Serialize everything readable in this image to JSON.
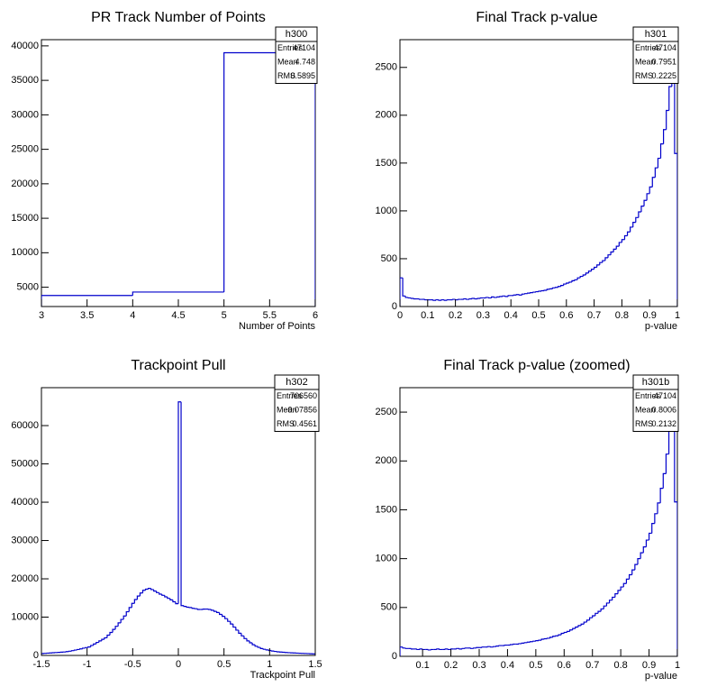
{
  "chart_data": [
    {
      "type": "histogram",
      "title": "PR Track Number of Points",
      "xlabel": "Number of Points",
      "color": "#0000cc",
      "bins": [
        3,
        4,
        5,
        6
      ],
      "values": [
        3800,
        4300,
        39000
      ],
      "xlim": [
        3,
        6
      ],
      "ylim": [
        2200,
        40900
      ],
      "xticks": [
        3,
        3.5,
        4,
        4.5,
        5,
        5.5,
        6
      ],
      "yticks": [
        5000,
        10000,
        15000,
        20000,
        25000,
        30000,
        35000,
        40000
      ],
      "stats": {
        "name": "h300",
        "rows": [
          {
            "label": "Entries",
            "value": 47104
          },
          {
            "label": "Mean",
            "value": 4.748
          },
          {
            "label": "RMS",
            "value": 0.5895
          }
        ]
      }
    },
    {
      "type": "histogram",
      "title": "Final Track p-value",
      "xlabel": "p-value",
      "color": "#0000cc",
      "bins": [
        0,
        0.01,
        0.02,
        0.03,
        0.04,
        0.05,
        0.06,
        0.07,
        0.08,
        0.09,
        0.1,
        0.11,
        0.12,
        0.13,
        0.14,
        0.15,
        0.16,
        0.17,
        0.18,
        0.19,
        0.2,
        0.21,
        0.22,
        0.23,
        0.24,
        0.25,
        0.26,
        0.27,
        0.28,
        0.29,
        0.3,
        0.31,
        0.32,
        0.33,
        0.34,
        0.35,
        0.36,
        0.37,
        0.38,
        0.39,
        0.4,
        0.41,
        0.42,
        0.43,
        0.44,
        0.45,
        0.46,
        0.47,
        0.48,
        0.49,
        0.5,
        0.51,
        0.52,
        0.53,
        0.54,
        0.55,
        0.56,
        0.57,
        0.58,
        0.59,
        0.6,
        0.61,
        0.62,
        0.63,
        0.64,
        0.65,
        0.66,
        0.67,
        0.68,
        0.69,
        0.7,
        0.71,
        0.72,
        0.73,
        0.74,
        0.75,
        0.76,
        0.77,
        0.78,
        0.79,
        0.8,
        0.81,
        0.82,
        0.83,
        0.84,
        0.85,
        0.86,
        0.87,
        0.88,
        0.89,
        0.9,
        0.91,
        0.92,
        0.93,
        0.94,
        0.95,
        0.96,
        0.97,
        0.98,
        0.99,
        1
      ],
      "values": [
        300,
        110,
        95,
        90,
        85,
        80,
        80,
        75,
        75,
        70,
        70,
        70,
        65,
        70,
        65,
        70,
        65,
        70,
        70,
        75,
        70,
        75,
        75,
        80,
        75,
        80,
        85,
        80,
        85,
        90,
        90,
        95,
        90,
        100,
        95,
        100,
        105,
        110,
        105,
        115,
        115,
        120,
        125,
        120,
        130,
        135,
        140,
        145,
        150,
        155,
        160,
        165,
        170,
        180,
        185,
        195,
        200,
        210,
        220,
        235,
        245,
        255,
        270,
        280,
        300,
        315,
        330,
        350,
        370,
        390,
        410,
        435,
        460,
        480,
        510,
        540,
        570,
        600,
        630,
        670,
        700,
        740,
        780,
        830,
        880,
        930,
        990,
        1050,
        1110,
        1180,
        1250,
        1350,
        1450,
        1550,
        1700,
        1850,
        2050,
        2300,
        2900,
        1600
      ],
      "xlim": [
        0,
        1
      ],
      "ylim": [
        0,
        2790
      ],
      "xticks": [
        0,
        0.1,
        0.2,
        0.3,
        0.4,
        0.5,
        0.6,
        0.7,
        0.8,
        0.9,
        1
      ],
      "yticks": [
        0,
        500,
        1000,
        1500,
        2000,
        2500
      ],
      "stats": {
        "name": "h301",
        "rows": [
          {
            "label": "Entries",
            "value": 47104
          },
          {
            "label": "Mean",
            "value": 0.7951
          },
          {
            "label": "RMS",
            "value": 0.2225
          }
        ]
      }
    },
    {
      "type": "histogram",
      "title": "Trackpoint Pull",
      "xlabel": "Trackpoint Pull",
      "color": "#0000cc",
      "bins": [
        -1.5,
        -1.47,
        -1.44,
        -1.41,
        -1.38,
        -1.35,
        -1.32,
        -1.29,
        -1.26,
        -1.23,
        -1.2,
        -1.17,
        -1.14,
        -1.11,
        -1.08,
        -1.05,
        -1.02,
        -0.99,
        -0.96,
        -0.93,
        -0.9,
        -0.87,
        -0.84,
        -0.81,
        -0.78,
        -0.75,
        -0.72,
        -0.69,
        -0.66,
        -0.63,
        -0.6,
        -0.57,
        -0.54,
        -0.51,
        -0.48,
        -0.45,
        -0.42,
        -0.39,
        -0.36,
        -0.33,
        -0.3,
        -0.27,
        -0.24,
        -0.21,
        -0.18,
        -0.15,
        -0.12,
        -0.09,
        -0.06,
        -0.03,
        0,
        0.03,
        0.06,
        0.09,
        0.12,
        0.15,
        0.18,
        0.21,
        0.24,
        0.27,
        0.3,
        0.33,
        0.36,
        0.39,
        0.42,
        0.45,
        0.48,
        0.51,
        0.54,
        0.57,
        0.6,
        0.63,
        0.66,
        0.69,
        0.72,
        0.75,
        0.78,
        0.81,
        0.84,
        0.87,
        0.9,
        0.93,
        0.96,
        0.99,
        1.02,
        1.05,
        1.08,
        1.11,
        1.14,
        1.17,
        1.2,
        1.23,
        1.26,
        1.29,
        1.32,
        1.35,
        1.38,
        1.41,
        1.44,
        1.47,
        1.5
      ],
      "values": [
        500,
        550,
        600,
        650,
        700,
        750,
        800,
        850,
        900,
        1000,
        1100,
        1250,
        1400,
        1550,
        1700,
        1900,
        2050,
        2200,
        2600,
        3000,
        3400,
        3800,
        4200,
        4600,
        5300,
        6000,
        6800,
        7600,
        8500,
        9400,
        10300,
        11400,
        12500,
        13600,
        14600,
        15500,
        16300,
        17000,
        17300,
        17500,
        17200,
        16800,
        16400,
        16000,
        15700,
        15300,
        14900,
        14500,
        14000,
        13500,
        66200,
        13000,
        12800,
        12600,
        12500,
        12300,
        12200,
        12000,
        12000,
        12100,
        12100,
        12000,
        11800,
        11500,
        11200,
        10700,
        10200,
        9600,
        8900,
        8200,
        7400,
        6600,
        5800,
        5100,
        4400,
        3800,
        3300,
        2800,
        2400,
        2100,
        1800,
        1600,
        1450,
        1300,
        1150,
        1050,
        950,
        880,
        820,
        760,
        720,
        680,
        640,
        600,
        570,
        540,
        510,
        480,
        450,
        420
      ],
      "xlim": [
        -1.5,
        1.5
      ],
      "ylim": [
        0,
        69900
      ],
      "xticks": [
        -1.5,
        -1,
        -0.5,
        0,
        0.5,
        1,
        1.5
      ],
      "yticks": [
        0,
        10000,
        20000,
        30000,
        40000,
        50000,
        60000
      ],
      "stats": {
        "name": "h302",
        "rows": [
          {
            "label": "Entries",
            "value": 706560
          },
          {
            "label": "Mean",
            "value": -0.07856
          },
          {
            "label": "RMS",
            "value": 0.4561
          }
        ]
      }
    },
    {
      "type": "histogram",
      "title": "Final Track p-value (zoomed)",
      "xlabel": "p-value",
      "color": "#0000cc",
      "bins": [
        0.02,
        0.03,
        0.04,
        0.05,
        0.06,
        0.07,
        0.08,
        0.09,
        0.1,
        0.11,
        0.12,
        0.13,
        0.14,
        0.15,
        0.16,
        0.17,
        0.18,
        0.19,
        0.2,
        0.21,
        0.22,
        0.23,
        0.24,
        0.25,
        0.26,
        0.27,
        0.28,
        0.29,
        0.3,
        0.31,
        0.32,
        0.33,
        0.34,
        0.35,
        0.36,
        0.37,
        0.38,
        0.39,
        0.4,
        0.41,
        0.42,
        0.43,
        0.44,
        0.45,
        0.46,
        0.47,
        0.48,
        0.49,
        0.5,
        0.51,
        0.52,
        0.53,
        0.54,
        0.55,
        0.56,
        0.57,
        0.58,
        0.59,
        0.6,
        0.61,
        0.62,
        0.63,
        0.64,
        0.65,
        0.66,
        0.67,
        0.68,
        0.69,
        0.7,
        0.71,
        0.72,
        0.73,
        0.74,
        0.75,
        0.76,
        0.77,
        0.78,
        0.79,
        0.8,
        0.81,
        0.82,
        0.83,
        0.84,
        0.85,
        0.86,
        0.87,
        0.88,
        0.89,
        0.9,
        0.91,
        0.92,
        0.93,
        0.94,
        0.95,
        0.96,
        0.97,
        0.98,
        0.99,
        1
      ],
      "values": [
        95,
        85,
        80,
        80,
        75,
        75,
        70,
        75,
        70,
        70,
        65,
        70,
        70,
        75,
        70,
        70,
        75,
        70,
        75,
        75,
        80,
        75,
        80,
        85,
        85,
        80,
        85,
        90,
        90,
        95,
        95,
        100,
        95,
        100,
        105,
        110,
        110,
        115,
        115,
        120,
        125,
        125,
        130,
        135,
        140,
        145,
        150,
        155,
        160,
        165,
        175,
        180,
        185,
        195,
        205,
        210,
        220,
        235,
        245,
        255,
        270,
        285,
        300,
        315,
        330,
        350,
        370,
        395,
        415,
        440,
        460,
        485,
        515,
        545,
        575,
        605,
        640,
        675,
        710,
        745,
        790,
        835,
        885,
        940,
        1000,
        1060,
        1120,
        1190,
        1260,
        1360,
        1460,
        1570,
        1720,
        1870,
        2070,
        2320,
        2900,
        1580
      ],
      "xlim": [
        0.02,
        1
      ],
      "ylim": [
        0,
        2750
      ],
      "xticks": [
        0.1,
        0.2,
        0.3,
        0.4,
        0.5,
        0.6,
        0.7,
        0.8,
        0.9,
        1
      ],
      "yticks": [
        0,
        500,
        1000,
        1500,
        2000,
        2500
      ],
      "stats": {
        "name": "h301b",
        "rows": [
          {
            "label": "Entries",
            "value": 47104
          },
          {
            "label": "Mean",
            "value": 0.8006
          },
          {
            "label": "RMS",
            "value": 0.2132
          }
        ]
      }
    }
  ]
}
